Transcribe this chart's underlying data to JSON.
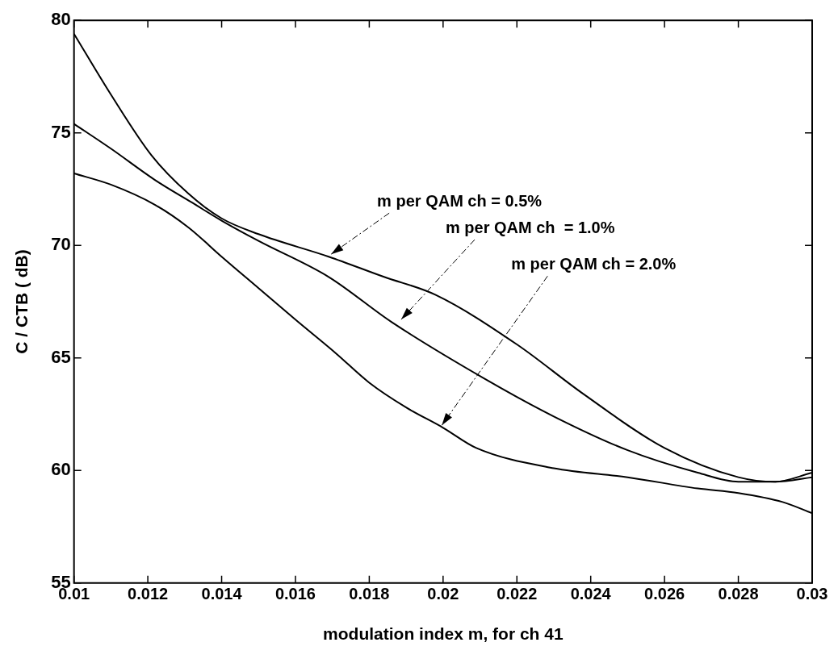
{
  "chart_data": {
    "type": "line",
    "xlabel": "modulation index m, for ch 41",
    "ylabel": "C / CTB ( dB)",
    "xlim": [
      0.01,
      0.03
    ],
    "ylim": [
      55,
      80
    ],
    "xticks": [
      0.01,
      0.012,
      0.014,
      0.016,
      0.018,
      0.02,
      0.022,
      0.024,
      0.026,
      0.028,
      0.03
    ],
    "yticks": [
      55,
      60,
      65,
      70,
      75,
      80
    ],
    "grid": false,
    "marker": "none",
    "line_style": "solid",
    "annotations": [
      {
        "text": "m per QAM ch = 0.5%",
        "x": 0.0169,
        "y": 69.5
      },
      {
        "text": "m per QAM ch  = 1.0%",
        "x": 0.0188,
        "y": 66.6
      },
      {
        "text": "m per QAM ch = 2.0%",
        "x": 0.0199,
        "y": 61.9
      }
    ],
    "series": [
      {
        "color": "#000000",
        "x": [
          0.01,
          0.011,
          0.0121,
          0.0131,
          0.014,
          0.015,
          0.0169,
          0.0184,
          0.0198,
          0.022,
          0.0238,
          0.026,
          0.028,
          0.029,
          0.03
        ],
        "values": [
          79.4,
          76.7,
          74.0,
          72.3,
          71.2,
          70.5,
          69.5,
          68.6,
          67.8,
          65.6,
          63.4,
          61.0,
          59.7,
          59.5,
          59.9
        ]
      },
      {
        "color": "#000000",
        "x": [
          0.01,
          0.011,
          0.0122,
          0.0132,
          0.014,
          0.015,
          0.0169,
          0.0186,
          0.0211,
          0.023,
          0.025,
          0.0269,
          0.028,
          0.029,
          0.03
        ],
        "values": [
          75.4,
          74.3,
          72.9,
          71.9,
          71.1,
          70.2,
          68.6,
          66.6,
          64.1,
          62.4,
          60.9,
          59.9,
          59.5,
          59.5,
          59.7
        ]
      },
      {
        "color": "#000000",
        "x": [
          0.01,
          0.011,
          0.0122,
          0.0131,
          0.014,
          0.015,
          0.016,
          0.0171,
          0.018,
          0.019,
          0.02,
          0.0209,
          0.023,
          0.025,
          0.0269,
          0.028,
          0.0292,
          0.03
        ],
        "values": [
          73.2,
          72.7,
          71.8,
          70.8,
          69.5,
          68.1,
          66.7,
          65.2,
          63.9,
          62.8,
          61.9,
          61.0,
          60.1,
          59.7,
          59.2,
          59.0,
          58.6,
          58.1
        ]
      }
    ]
  }
}
